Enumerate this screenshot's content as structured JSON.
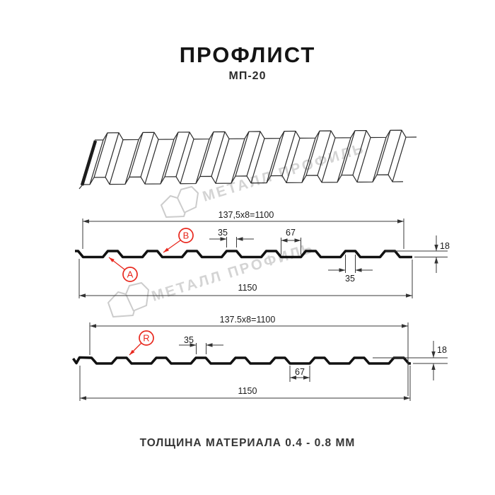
{
  "page": {
    "title": "ПРОФЛИСТ",
    "subtitle": "МП-20",
    "footer_note": "ТОЛЩИНА МАТЕРИАЛА 0.4 - 0.8 ММ"
  },
  "watermark": {
    "brand_text": "МЕТАЛЛ ПРОФИЛЬ"
  },
  "colors": {
    "profile_line": "#111111",
    "dimension_line": "#3a3a3a",
    "annotation_red": "#e8281e",
    "watermark_gray": "#d4d4d4"
  },
  "profile_top": {
    "width_formula": "137,5x8=1100",
    "crest_width": "35",
    "valley_width": "67",
    "height": "18",
    "total_width": "1150",
    "crest_width_bottom": "35",
    "label_a": "A",
    "label_b": "B"
  },
  "profile_bottom": {
    "width_formula": "137.5x8=1100",
    "crest_width": "35",
    "valley_width": "67",
    "height": "18",
    "total_width": "1150",
    "label_r": "R"
  }
}
